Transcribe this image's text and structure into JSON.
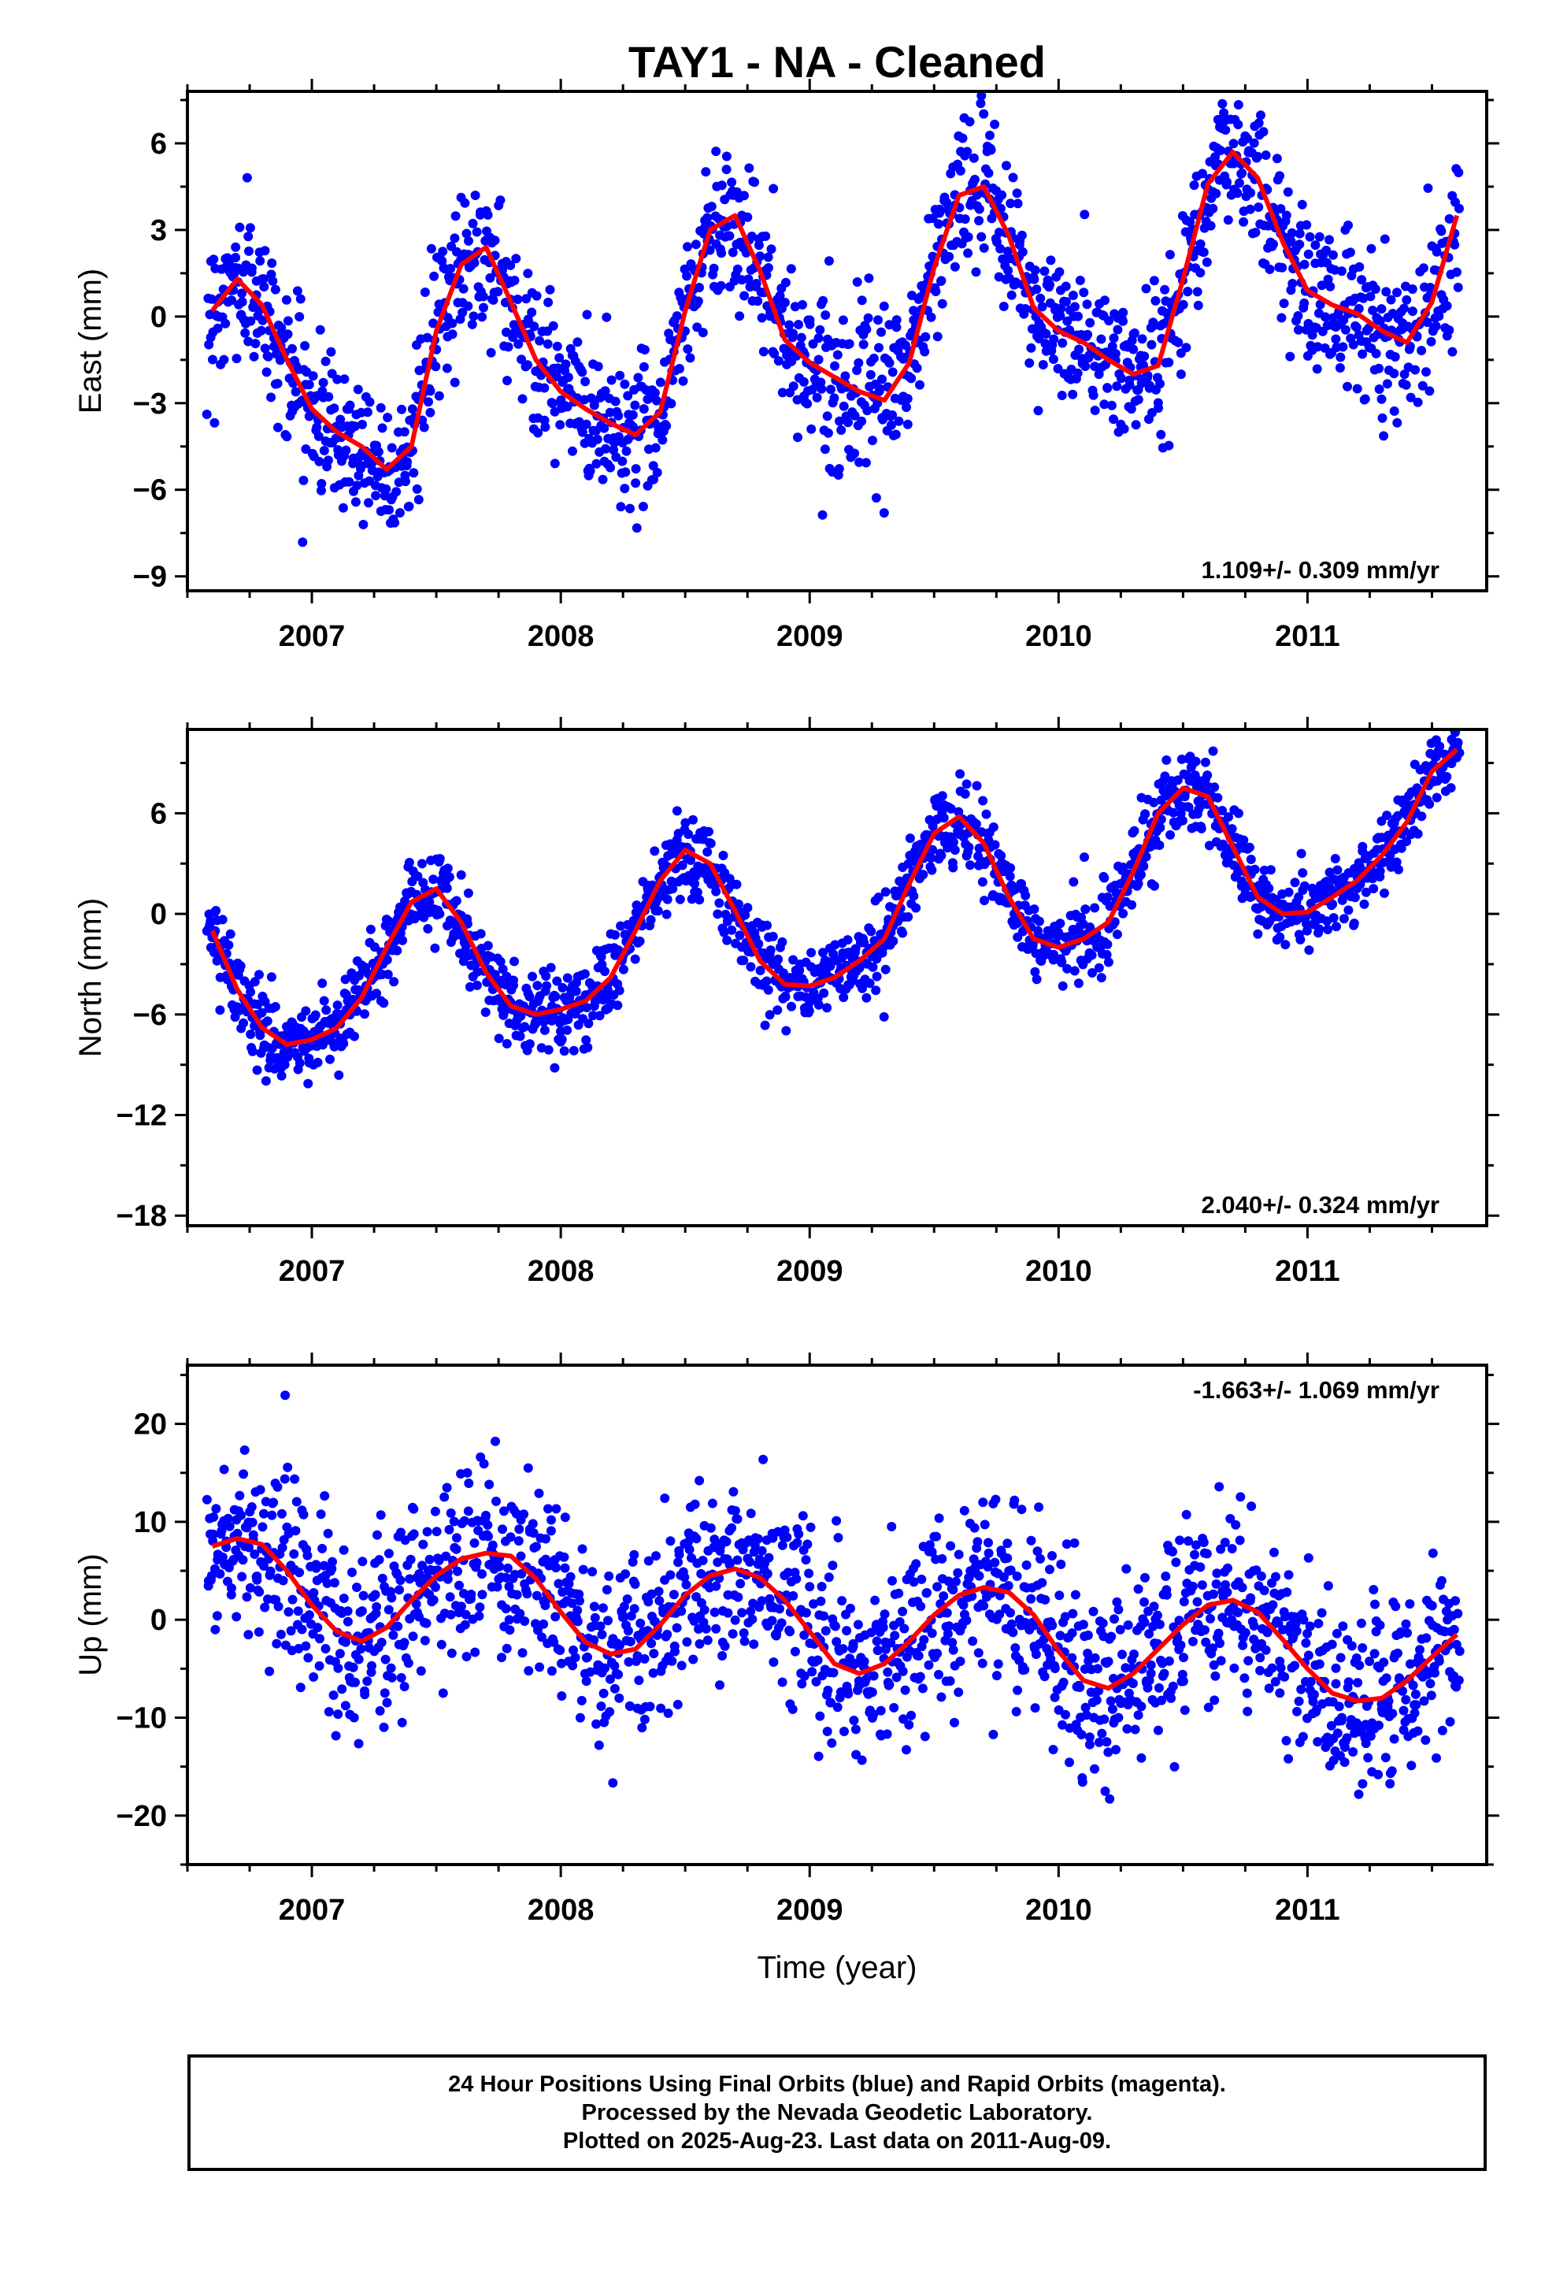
{
  "title": "TAY1  - NA - Cleaned",
  "xlabel": "Time (year)",
  "colors": {
    "final_orbits": "#0000ff",
    "fit": "#ff0000",
    "axis": "#000000"
  },
  "footer": {
    "line1": "24 Hour Positions Using Final Orbits (blue) and Rapid Orbits (magenta).",
    "line2": "Processed by the Nevada Geodetic Laboratory.",
    "line3": "Plotted on 2025-Aug-23. Last data on 2011-Aug-09."
  },
  "chart_data": [
    {
      "type": "scatter",
      "component": "east",
      "ylabel": "East (mm)",
      "rate": "1.109+/- 0.309 mm/yr",
      "rate_position": "bottom-right",
      "xlim": [
        2006.5,
        2011.72
      ],
      "ylim": [
        -9.5,
        7.8
      ],
      "xticks": [
        2007,
        2008,
        2009,
        2010,
        2011
      ],
      "xtick_labels": [
        "2007",
        "2008",
        "2009",
        "2010",
        "2011"
      ],
      "yticks": [
        -9,
        -6,
        -3,
        0,
        3,
        6
      ],
      "ytick_labels": [
        "−9",
        "−6",
        "−3",
        "0",
        "3",
        "6"
      ],
      "fit": {
        "x": [
          2006.6,
          2006.7,
          2006.8,
          2006.9,
          2007.0,
          2007.1,
          2007.2,
          2007.3,
          2007.4,
          2007.5,
          2007.6,
          2007.7,
          2007.8,
          2007.9,
          2008.0,
          2008.1,
          2008.2,
          2008.3,
          2008.4,
          2008.5,
          2008.6,
          2008.7,
          2008.8,
          2008.9,
          2009.0,
          2009.1,
          2009.2,
          2009.3,
          2009.4,
          2009.5,
          2009.6,
          2009.7,
          2009.8,
          2009.9,
          2010.0,
          2010.1,
          2010.2,
          2010.3,
          2010.4,
          2010.5,
          2010.6,
          2010.7,
          2010.8,
          2010.9,
          2011.0,
          2011.1,
          2011.2,
          2011.3,
          2011.4,
          2011.5,
          2011.6
        ],
        "y": [
          0.2,
          1.3,
          0.4,
          -1.5,
          -3.2,
          -4.0,
          -4.5,
          -5.3,
          -4.5,
          -0.5,
          1.8,
          2.4,
          0.5,
          -1.5,
          -2.6,
          -3.2,
          -3.7,
          -4.1,
          -3.3,
          0.2,
          3.0,
          3.5,
          1.6,
          -0.8,
          -1.6,
          -2.1,
          -2.6,
          -2.9,
          -1.6,
          1.7,
          4.2,
          4.5,
          2.8,
          0.3,
          -0.5,
          -0.9,
          -1.5,
          -2.0,
          -1.7,
          1.3,
          4.6,
          5.7,
          4.8,
          2.6,
          0.9,
          0.4,
          0.1,
          -0.5,
          -0.9,
          0.5,
          3.5
        ]
      },
      "points": {
        "count": 1700,
        "noise_sd_mm": 1.3,
        "color": "#0000ff"
      }
    },
    {
      "type": "scatter",
      "component": "north",
      "ylabel": "North (mm)",
      "rate": "2.040+/- 0.324 mm/yr",
      "rate_position": "bottom-right",
      "xlim": [
        2006.5,
        2011.72
      ],
      "ylim": [
        -18.6,
        11.0
      ],
      "xticks": [
        2007,
        2008,
        2009,
        2010,
        2011
      ],
      "xtick_labels": [
        "2007",
        "2008",
        "2009",
        "2010",
        "2011"
      ],
      "yticks": [
        -18,
        -12,
        -6,
        0,
        6
      ],
      "ytick_labels": [
        "−18",
        "−12",
        "−6",
        "0",
        "6"
      ],
      "fit": {
        "x": [
          2006.6,
          2006.7,
          2006.8,
          2006.9,
          2007.0,
          2007.1,
          2007.2,
          2007.3,
          2007.4,
          2007.5,
          2007.6,
          2007.7,
          2007.8,
          2007.9,
          2008.0,
          2008.1,
          2008.2,
          2008.3,
          2008.4,
          2008.5,
          2008.6,
          2008.7,
          2008.8,
          2008.9,
          2009.0,
          2009.1,
          2009.2,
          2009.3,
          2009.4,
          2009.5,
          2009.6,
          2009.7,
          2009.8,
          2009.9,
          2010.0,
          2010.1,
          2010.2,
          2010.3,
          2010.4,
          2010.5,
          2010.6,
          2010.7,
          2010.8,
          2010.9,
          2011.0,
          2011.1,
          2011.2,
          2011.3,
          2011.4,
          2011.5,
          2011.6
        ],
        "y": [
          -1.0,
          -4.5,
          -6.8,
          -7.8,
          -7.5,
          -6.8,
          -5.0,
          -2.0,
          0.7,
          1.5,
          -0.5,
          -3.5,
          -5.5,
          -6.0,
          -5.7,
          -5.2,
          -3.8,
          -1.0,
          2.0,
          3.8,
          3.0,
          0.2,
          -2.8,
          -4.2,
          -4.3,
          -3.8,
          -2.8,
          -1.5,
          1.8,
          4.8,
          5.8,
          4.2,
          1.0,
          -1.5,
          -2.0,
          -1.5,
          -0.5,
          2.5,
          6.0,
          7.5,
          7.0,
          4.0,
          1.0,
          0.0,
          0.1,
          1.0,
          2.0,
          3.5,
          5.5,
          8.5,
          9.8
        ]
      },
      "points": {
        "count": 1700,
        "noise_sd_mm": 1.2,
        "color": "#0000ff"
      }
    },
    {
      "type": "scatter",
      "component": "up",
      "ylabel": "Up (mm)",
      "rate": "-1.663+/- 1.069 mm/yr",
      "rate_position": "top-right",
      "xlim": [
        2006.5,
        2011.72
      ],
      "ylim": [
        -25.0,
        26.0
      ],
      "xticks": [
        2007,
        2008,
        2009,
        2010,
        2011
      ],
      "xtick_labels": [
        "2007",
        "2008",
        "2009",
        "2010",
        "2011"
      ],
      "yticks": [
        -20,
        -10,
        0,
        10,
        20
      ],
      "ytick_labels": [
        "−20",
        "−10",
        "0",
        "10",
        "20"
      ],
      "fit": {
        "x": [
          2006.6,
          2006.7,
          2006.8,
          2006.9,
          2007.0,
          2007.1,
          2007.2,
          2007.3,
          2007.4,
          2007.5,
          2007.6,
          2007.7,
          2007.8,
          2007.9,
          2008.0,
          2008.1,
          2008.2,
          2008.3,
          2008.4,
          2008.5,
          2008.6,
          2008.7,
          2008.8,
          2008.9,
          2009.0,
          2009.1,
          2009.2,
          2009.3,
          2009.4,
          2009.5,
          2009.6,
          2009.7,
          2009.8,
          2009.9,
          2010.0,
          2010.1,
          2010.2,
          2010.3,
          2010.4,
          2010.5,
          2010.6,
          2010.7,
          2010.8,
          2010.9,
          2011.0,
          2011.1,
          2011.2,
          2011.3,
          2011.4,
          2011.5,
          2011.6
        ],
        "y": [
          7.5,
          8.3,
          7.7,
          5.0,
          1.5,
          -1.2,
          -2.2,
          -0.8,
          2.0,
          4.5,
          6.2,
          6.8,
          6.5,
          4.2,
          0.8,
          -2.3,
          -3.5,
          -3.0,
          -0.5,
          2.5,
          4.5,
          5.2,
          4.3,
          2.0,
          -1.2,
          -4.5,
          -5.5,
          -4.5,
          -2.2,
          0.5,
          2.5,
          3.3,
          2.8,
          0.5,
          -3.2,
          -6.2,
          -7.0,
          -5.5,
          -3.0,
          -0.5,
          1.5,
          2.0,
          0.8,
          -2.0,
          -5.0,
          -7.5,
          -8.3,
          -8.0,
          -6.2,
          -3.8,
          -1.5
        ]
      },
      "points": {
        "count": 1700,
        "noise_sd_mm": 4.8,
        "color": "#0000ff"
      }
    }
  ]
}
